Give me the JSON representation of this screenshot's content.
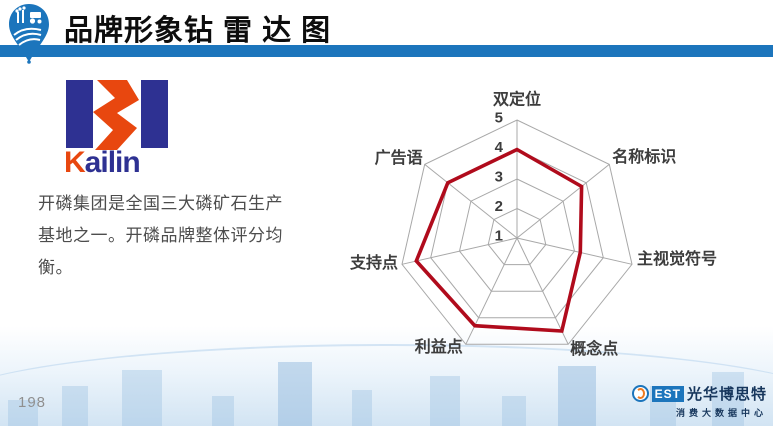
{
  "header": {
    "title": "品牌形象钻 雷 达 图",
    "logo_icon": "agriculture-balloon-pin-icon",
    "bar_color": "#1c75bc"
  },
  "left_panel": {
    "kailin_logo_icon": "kailin-logo",
    "kailin_wordmark": {
      "first": "K",
      "rest": "ailin"
    },
    "description": "开磷集团是全国三大磷矿石生产基地之一。开磷品牌整体评分均衡。"
  },
  "chart_data": {
    "type": "radar",
    "title": "",
    "categories": [
      "双定位",
      "名称标识",
      "主视觉符号",
      "概念点",
      "利益点",
      "支持点",
      "广告语"
    ],
    "values": [
      4.0,
      3.8,
      3.2,
      4.5,
      4.3,
      4.5,
      4.0
    ],
    "ticks": [
      1,
      2,
      3,
      4,
      5
    ],
    "axis_range": [
      1,
      5
    ],
    "grid": true,
    "legend_position": "none",
    "series_color": "#b00b1c",
    "grid_color": "#a8a8a8"
  },
  "footer": {
    "page_number": "198",
    "brand": {
      "icon": "best-circle-b-icon",
      "est_text": "EST",
      "name": "光华博思特",
      "subtitle": "消费大数据中心"
    }
  }
}
